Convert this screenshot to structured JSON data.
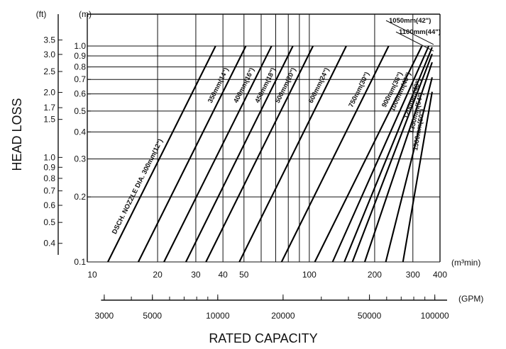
{
  "chart_data": {
    "type": "line",
    "title": "",
    "xlabel": "RATED CAPACITY",
    "ylabel": "HEAD LOSS",
    "x_scale": "log",
    "y_scale": "log",
    "xlim": [
      10,
      400
    ],
    "ylim": [
      0.1,
      1.0
    ],
    "x_unit": "(m³min)",
    "x_secondary_unit": "(GPM)",
    "y_unit": "(m)",
    "y_secondary_unit": "(ft)",
    "x_ticks": [
      "10",
      "20",
      "30",
      "40",
      "50",
      "100",
      "200",
      "300",
      "400"
    ],
    "x_tick_values": [
      10,
      20,
      30,
      40,
      50,
      100,
      200,
      300,
      400
    ],
    "gpm_ticks": [
      "3000",
      "5000",
      "10000",
      "20000",
      "50000",
      "100000"
    ],
    "gpm_tick_values": [
      3000,
      5000,
      10000,
      20000,
      50000,
      100000
    ],
    "y_ticks": [
      "0.1",
      "0.2",
      "0.3",
      "0.4",
      "0.5",
      "0.6",
      "0.7",
      "0.8",
      "0.9",
      "1.0"
    ],
    "y_tick_values": [
      0.1,
      0.2,
      0.3,
      0.4,
      0.5,
      0.6,
      0.7,
      0.8,
      0.9,
      1.0
    ],
    "ft_ticks": [
      "0.4",
      "0.5",
      "0.6",
      "0.7",
      "0.8",
      "0.9",
      "1.0",
      "1.5",
      "1.7",
      "2.0",
      "2.5",
      "3.0",
      "3.5"
    ],
    "ft_tick_values": [
      0.4,
      0.5,
      0.6,
      0.7,
      0.8,
      0.9,
      1.0,
      1.5,
      1.7,
      2.0,
      2.5,
      3.0,
      3.5
    ],
    "grid": true,
    "series": [
      {
        "name": "DSCH. NOZZLE DIA. 300mm(12\")",
        "x": [
          11.8,
          37
        ],
        "y": [
          0.1,
          1.0
        ]
      },
      {
        "name": "350mm(14\")",
        "x": [
          16.3,
          51
        ],
        "y": [
          0.1,
          1.0
        ]
      },
      {
        "name": "400mm(16\")",
        "x": [
          21.4,
          67
        ],
        "y": [
          0.1,
          1.0
        ]
      },
      {
        "name": "450mm(18\")",
        "x": [
          27,
          84
        ],
        "y": [
          0.1,
          1.0
        ]
      },
      {
        "name": "500mm(20\")",
        "x": [
          33.4,
          104
        ],
        "y": [
          0.1,
          1.0
        ]
      },
      {
        "name": "600mm(24\")",
        "x": [
          47.6,
          148
        ],
        "y": [
          0.1,
          1.0
        ]
      },
      {
        "name": "750mm(30\")",
        "x": [
          74.5,
          232
        ],
        "y": [
          0.1,
          1.0
        ]
      },
      {
        "name": "900mm(36\")",
        "x": [
          106,
          330
        ],
        "y": [
          0.1,
          1.0
        ]
      },
      {
        "name": "1000mm(40\")",
        "x": [
          128,
          355
        ],
        "y": [
          0.1,
          1.0
        ]
      },
      {
        "name": "1050mm(42\")",
        "x": [
          145,
          370
        ],
        "y": [
          0.1,
          1.0
        ]
      },
      {
        "name": "1100mm(44\")",
        "x": [
          158,
          380
        ],
        "y": [
          0.1,
          1.0
        ]
      },
      {
        "name": "1200mm(48\")",
        "x": [
          180,
          390
        ],
        "y": [
          0.1,
          1.0
        ]
      },
      {
        "name": "1350mm(54\")",
        "x": [
          225,
          400
        ],
        "y": [
          0.1,
          1.0
        ]
      },
      {
        "name": "1500mm(60\")",
        "x": [
          270,
          400
        ],
        "y": [
          0.1,
          1.0
        ]
      }
    ]
  }
}
